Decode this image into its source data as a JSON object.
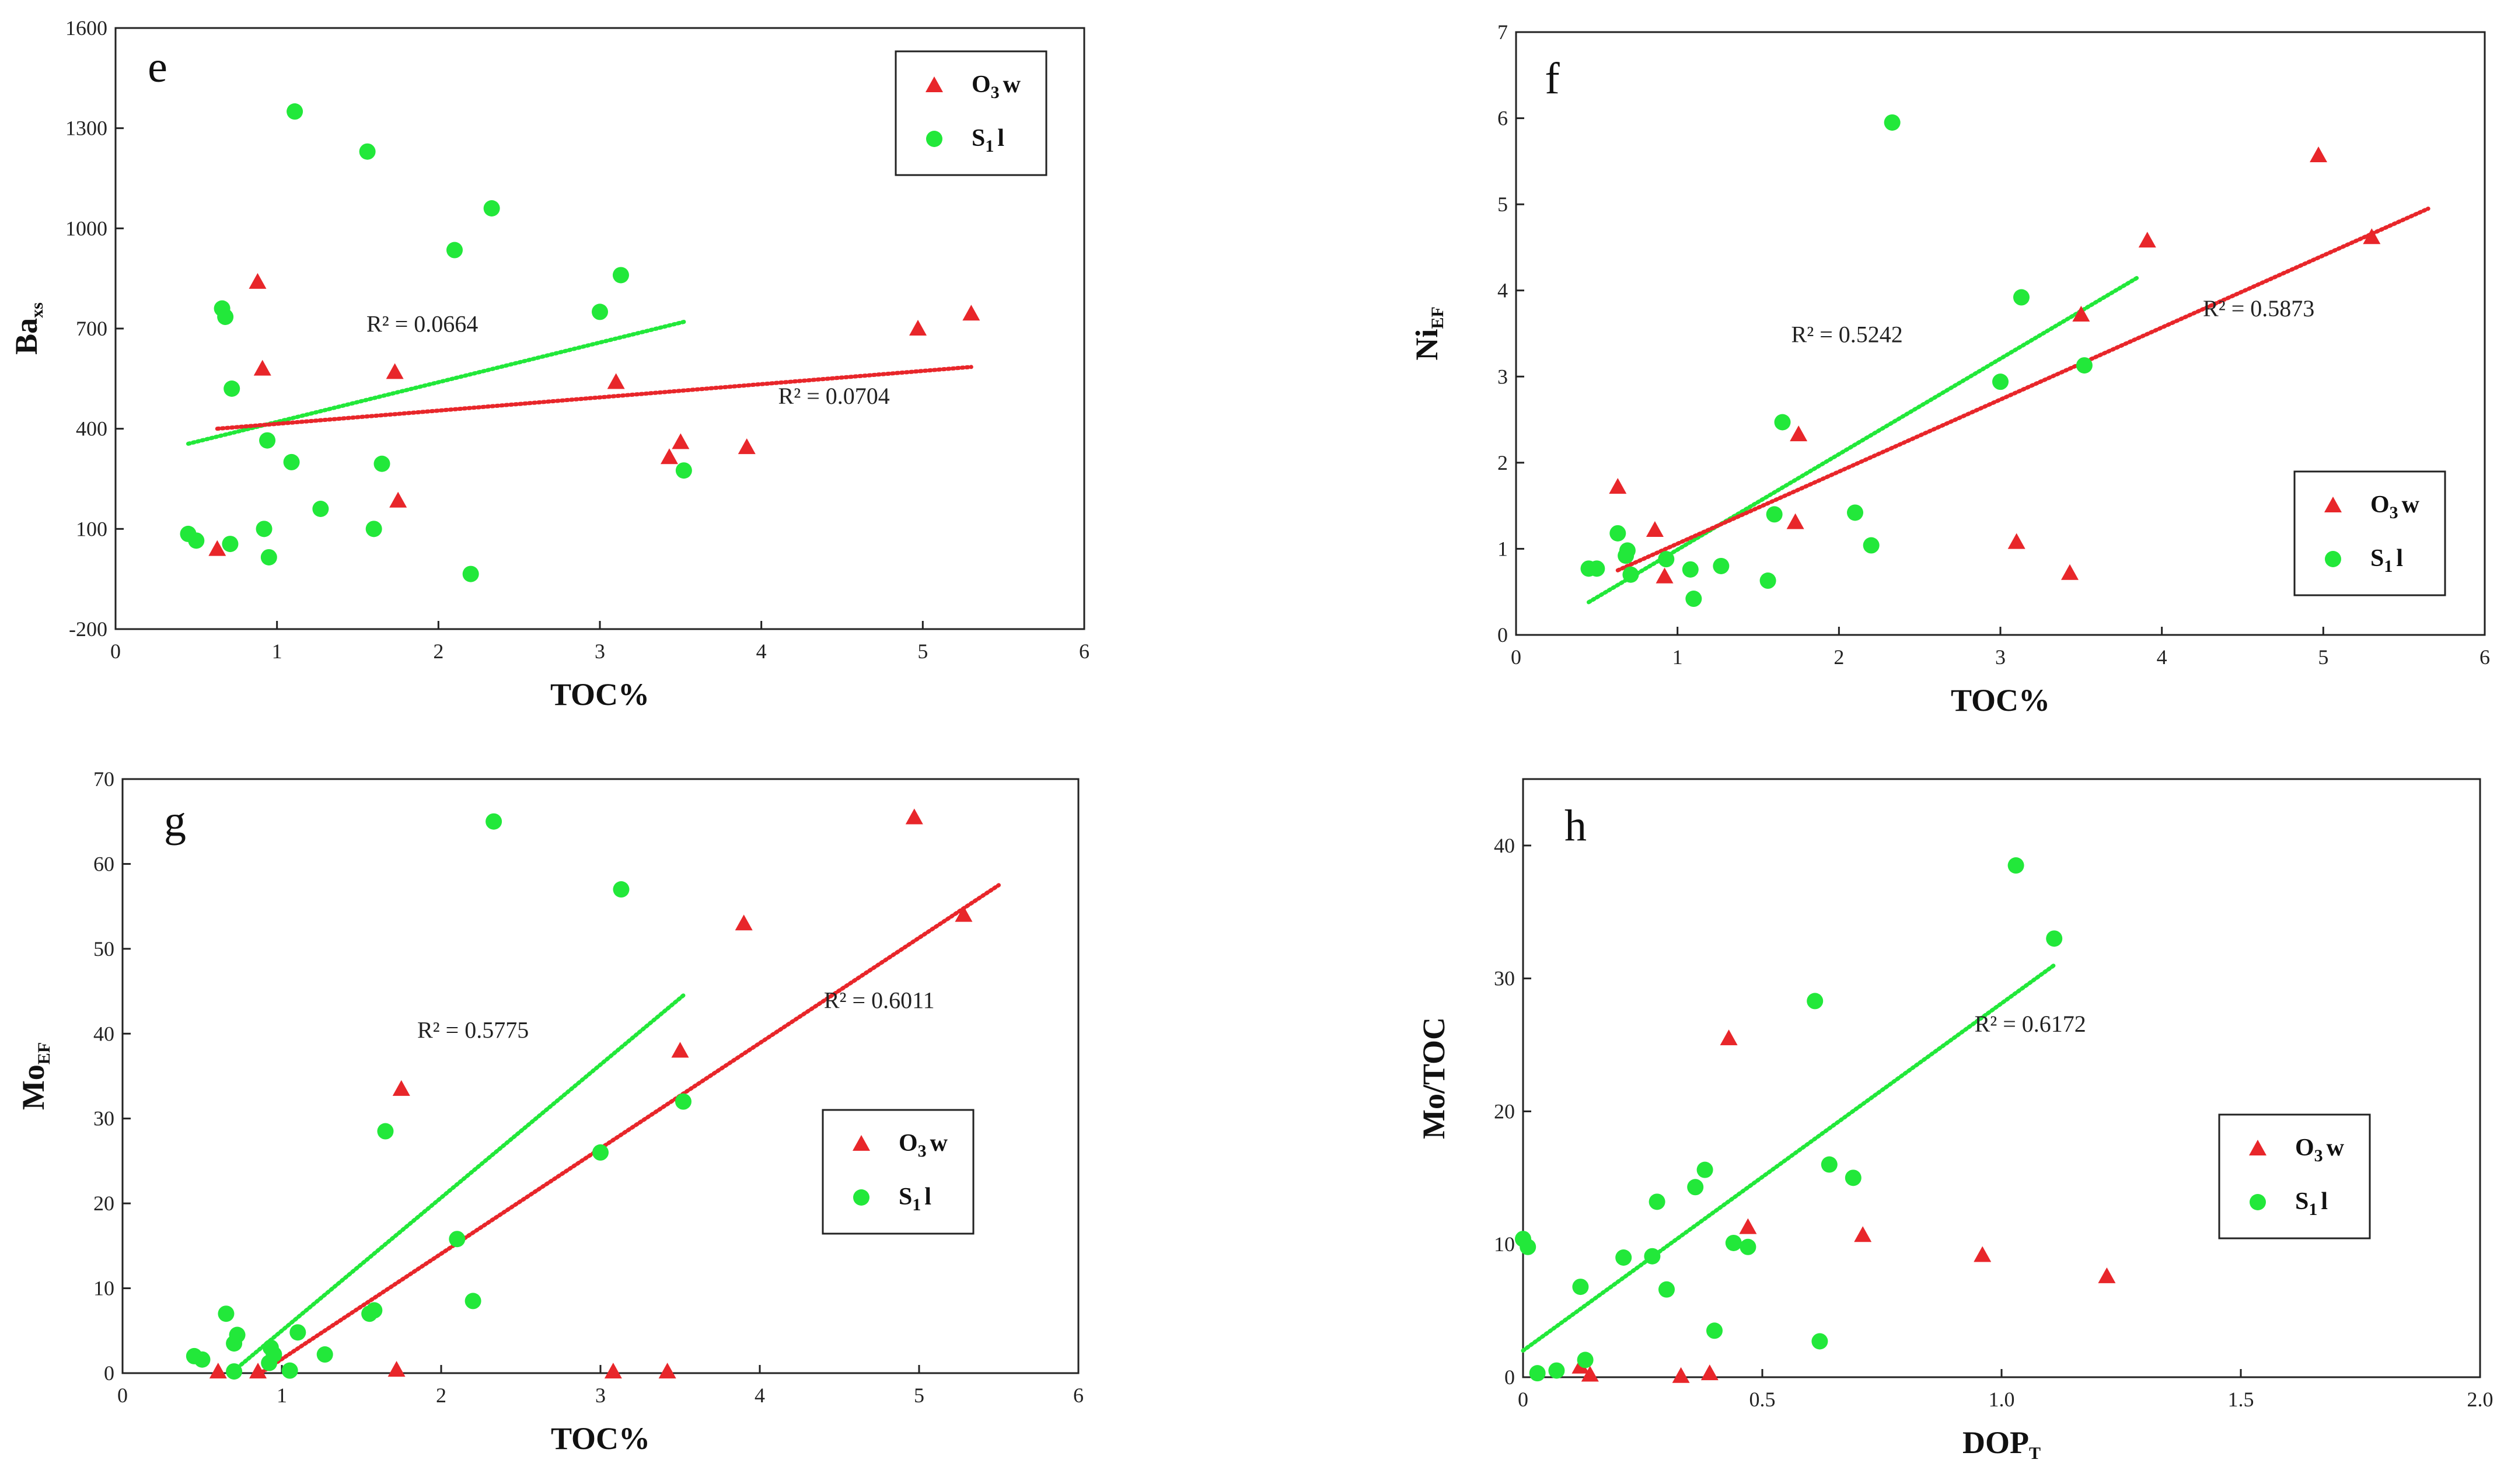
{
  "colors": {
    "o3w": "#e8262a",
    "s1l": "#22e83a",
    "axis": "#222222"
  },
  "legend": {
    "o3w": {
      "main": "O",
      "sub": "3",
      "rest": "w"
    },
    "s1l": {
      "main": "S",
      "sub": "1",
      "rest": "l"
    }
  },
  "chart_data": [
    {
      "type": "scatter",
      "panel": "e",
      "xlabel": "TOC%",
      "ylabel": {
        "main": "Ba",
        "sub": "xs"
      },
      "xlim": [
        0,
        6
      ],
      "ylim": [
        -200,
        1600
      ],
      "xticks": [
        0,
        1,
        2,
        3,
        4,
        5,
        6
      ],
      "yticks": [
        -200,
        100,
        400,
        700,
        1000,
        1300,
        1600
      ],
      "legend_position": "top-right",
      "series": [
        {
          "name": "O3w",
          "marker": "triangle",
          "points": [
            [
              0.63,
              40
            ],
            [
              0.88,
              840
            ],
            [
              0.91,
              580
            ],
            [
              1.73,
              570
            ],
            [
              1.75,
              185
            ],
            [
              3.1,
              540
            ],
            [
              3.43,
              315
            ],
            [
              3.5,
              360
            ],
            [
              3.91,
              345
            ],
            [
              4.97,
              700
            ],
            [
              5.3,
              745
            ]
          ]
        },
        {
          "name": "S1l",
          "marker": "circle",
          "points": [
            [
              0.45,
              85
            ],
            [
              0.5,
              65
            ],
            [
              0.66,
              760
            ],
            [
              0.68,
              735
            ],
            [
              0.72,
              520
            ],
            [
              0.71,
              55
            ],
            [
              0.92,
              100
            ],
            [
              0.94,
              365
            ],
            [
              0.95,
              15
            ],
            [
              1.09,
              300
            ],
            [
              1.11,
              1350
            ],
            [
              1.27,
              160
            ],
            [
              1.56,
              1230
            ],
            [
              1.6,
              100
            ],
            [
              1.65,
              295
            ],
            [
              2.1,
              935
            ],
            [
              2.2,
              -35
            ],
            [
              2.33,
              1060
            ],
            [
              3.0,
              750
            ],
            [
              3.13,
              860
            ],
            [
              3.52,
              275
            ]
          ]
        }
      ],
      "trendlines": [
        {
          "series": "S1l",
          "x": [
            0.45,
            3.52
          ],
          "y": [
            355,
            720
          ],
          "r2_label": "R² = 0.0664",
          "label_at": [
            1.9,
            690
          ]
        },
        {
          "series": "O3w",
          "x": [
            0.63,
            5.3
          ],
          "y": [
            400,
            585
          ],
          "r2_label": "R² = 0.0704",
          "label_at": [
            4.45,
            475
          ]
        }
      ]
    },
    {
      "type": "scatter",
      "panel": "f",
      "xlabel": "TOC%",
      "ylabel": {
        "main": "Ni",
        "sub": "EF"
      },
      "xlim": [
        0,
        6
      ],
      "ylim": [
        0,
        7
      ],
      "xticks": [
        0,
        1,
        2,
        3,
        4,
        5,
        6
      ],
      "yticks": [
        0,
        1,
        2,
        3,
        4,
        5,
        6,
        7
      ],
      "legend_position": "bottom-right",
      "series": [
        {
          "name": "O3w",
          "marker": "triangle",
          "points": [
            [
              0.63,
              1.72
            ],
            [
              0.86,
              1.22
            ],
            [
              0.92,
              0.68
            ],
            [
              1.73,
              1.31
            ],
            [
              1.75,
              2.33
            ],
            [
              3.1,
              1.08
            ],
            [
              3.43,
              0.72
            ],
            [
              3.5,
              3.72
            ],
            [
              3.91,
              4.58
            ],
            [
              4.97,
              5.57
            ],
            [
              5.3,
              4.62
            ]
          ]
        },
        {
          "name": "S1l",
          "marker": "circle",
          "points": [
            [
              0.45,
              0.77
            ],
            [
              0.5,
              0.77
            ],
            [
              0.63,
              1.18
            ],
            [
              0.68,
              0.92
            ],
            [
              0.69,
              0.98
            ],
            [
              0.71,
              0.7
            ],
            [
              0.93,
              0.88
            ],
            [
              1.08,
              0.76
            ],
            [
              1.1,
              0.42
            ],
            [
              1.27,
              0.8
            ],
            [
              1.56,
              0.63
            ],
            [
              1.6,
              1.4
            ],
            [
              1.65,
              2.47
            ],
            [
              2.1,
              1.42
            ],
            [
              2.2,
              1.04
            ],
            [
              2.33,
              5.95
            ],
            [
              3.0,
              2.94
            ],
            [
              3.13,
              3.92
            ],
            [
              3.52,
              3.13
            ]
          ]
        }
      ],
      "trendlines": [
        {
          "series": "S1l",
          "x": [
            0.45,
            3.85
          ],
          "y": [
            0.38,
            4.15
          ],
          "r2_label": "R² = 0.5242",
          "label_at": [
            2.05,
            3.4
          ]
        },
        {
          "series": "O3w",
          "x": [
            0.63,
            5.65
          ],
          "y": [
            0.75,
            4.95
          ],
          "r2_label": "R² = 0.5873",
          "label_at": [
            4.6,
            3.7
          ]
        }
      ]
    },
    {
      "type": "scatter",
      "panel": "g",
      "xlabel": "TOC%",
      "ylabel": {
        "main": "Mo",
        "sub": "EF"
      },
      "xlim": [
        0,
        6
      ],
      "ylim": [
        0,
        70
      ],
      "xticks": [
        0,
        1,
        2,
        3,
        4,
        5,
        6
      ],
      "yticks": [
        0,
        10,
        20,
        30,
        40,
        50,
        60,
        70
      ],
      "legend_position": "right",
      "series": [
        {
          "name": "O3w",
          "marker": "triangle",
          "points": [
            [
              0.6,
              0.2
            ],
            [
              0.85,
              0.2
            ],
            [
              1.72,
              0.4
            ],
            [
              1.75,
              33.5
            ],
            [
              3.08,
              0.2
            ],
            [
              3.42,
              0.2
            ],
            [
              3.5,
              38
            ],
            [
              3.9,
              53
            ],
            [
              4.97,
              65.5
            ],
            [
              5.28,
              54
            ]
          ]
        },
        {
          "name": "S1l",
          "marker": "circle",
          "points": [
            [
              0.45,
              2
            ],
            [
              0.5,
              1.6
            ],
            [
              0.65,
              7
            ],
            [
              0.7,
              3.5
            ],
            [
              0.72,
              4.5
            ],
            [
              0.7,
              0.2
            ],
            [
              0.92,
              1.2
            ],
            [
              0.93,
              3
            ],
            [
              0.95,
              2.2
            ],
            [
              1.05,
              0.3
            ],
            [
              1.1,
              4.8
            ],
            [
              1.27,
              2.2
            ],
            [
              1.55,
              7
            ],
            [
              1.58,
              7.4
            ],
            [
              1.65,
              28.5
            ],
            [
              2.1,
              15.8
            ],
            [
              2.2,
              8.5
            ],
            [
              2.33,
              65
            ],
            [
              3.0,
              26
            ],
            [
              3.13,
              57
            ],
            [
              3.52,
              32
            ]
          ]
        }
      ],
      "trendlines": [
        {
          "series": "S1l",
          "x": [
            0.7,
            3.52
          ],
          "y": [
            0.3,
            44.5
          ],
          "r2_label": "R² = 0.5775",
          "label_at": [
            2.2,
            39.5
          ]
        },
        {
          "series": "O3w",
          "x": [
            0.85,
            5.5
          ],
          "y": [
            -0.2,
            57.5
          ],
          "r2_label": "R² = 0.6011",
          "label_at": [
            4.75,
            43
          ]
        }
      ]
    },
    {
      "type": "scatter",
      "panel": "h",
      "xlabel": {
        "main": "DOP",
        "sub": "T"
      },
      "ylabel": "Mo/TOC",
      "xlim": [
        0,
        2.0
      ],
      "ylim": [
        0,
        45
      ],
      "xticks": [
        0,
        0.5,
        1.0,
        1.5,
        2.0
      ],
      "xtick_labels": [
        "0",
        "0.5",
        "1.0",
        "1.5",
        "2.0"
      ],
      "yticks": [
        0,
        10,
        20,
        30,
        40
      ],
      "legend_position": "right",
      "series": [
        {
          "name": "O3w",
          "marker": "triangle",
          "points": [
            [
              0.12,
              0.8
            ],
            [
              0.14,
              0.2
            ],
            [
              0.33,
              0.1
            ],
            [
              0.39,
              0.3
            ],
            [
              0.43,
              25.5
            ],
            [
              0.47,
              11.3
            ],
            [
              0.71,
              10.7
            ],
            [
              0.96,
              9.2
            ],
            [
              1.22,
              7.6
            ]
          ]
        },
        {
          "name": "S1l",
          "marker": "circle",
          "points": [
            [
              0.0,
              10.4
            ],
            [
              0.01,
              9.8
            ],
            [
              0.03,
              0.3
            ],
            [
              0.07,
              0.5
            ],
            [
              0.12,
              6.8
            ],
            [
              0.13,
              1.3
            ],
            [
              0.21,
              9
            ],
            [
              0.27,
              9.1
            ],
            [
              0.28,
              13.2
            ],
            [
              0.3,
              6.6
            ],
            [
              0.36,
              14.3
            ],
            [
              0.38,
              15.6
            ],
            [
              0.4,
              3.5
            ],
            [
              0.44,
              10.1
            ],
            [
              0.47,
              9.8
            ],
            [
              0.61,
              28.3
            ],
            [
              0.62,
              2.7
            ],
            [
              0.64,
              16
            ],
            [
              0.69,
              15
            ],
            [
              1.03,
              38.5
            ],
            [
              1.11,
              33
            ]
          ]
        }
      ],
      "trendlines": [
        {
          "series": "S1l",
          "x": [
            0.0,
            1.11
          ],
          "y": [
            2.0,
            31.0
          ],
          "r2_label": "R² = 0.6172",
          "label_at": [
            1.06,
            26
          ]
        }
      ]
    }
  ],
  "layout_meta": {
    "panels_per_row": 2
  }
}
